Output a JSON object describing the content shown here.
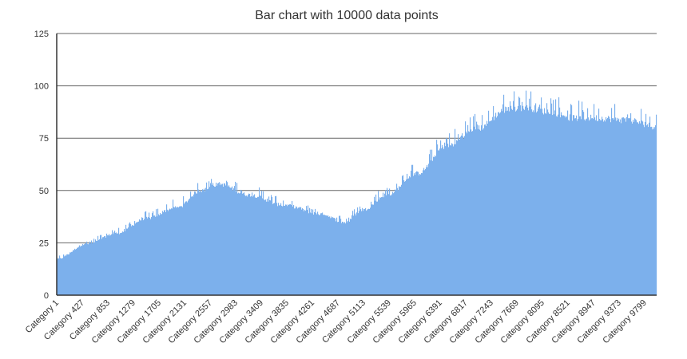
{
  "chart_data": {
    "type": "bar",
    "title": "Bar chart with 10000 data points",
    "xlabel": "",
    "ylabel": "",
    "ylim": [
      0,
      125
    ],
    "yticks": [
      0,
      25,
      50,
      75,
      100,
      125
    ],
    "grid": true,
    "legend": "none",
    "bar_color": "#7cb0ec",
    "category_prefix": "Category ",
    "num_points": 10000,
    "x_tick_labels": [
      "Category 1",
      "Category 427",
      "Category 853",
      "Category 1279",
      "Category 1705",
      "Category 2131",
      "Category 2557",
      "Category 2983",
      "Category 3409",
      "Category 3835",
      "Category 4261",
      "Category 4687",
      "Category 5113",
      "Category 5539",
      "Category 5965",
      "Category 6391",
      "Category 6817",
      "Category 7243",
      "Category 7669",
      "Category 8095",
      "Category 8521",
      "Category 8947",
      "Category 9373",
      "Category 9799"
    ],
    "trend": {
      "categories": [
        1,
        500,
        1000,
        1500,
        2000,
        2400,
        2700,
        3200,
        3800,
        4400,
        4800,
        5100,
        5500,
        6000,
        6500,
        7000,
        7500,
        7800,
        8200,
        8600,
        9000,
        9500,
        10000
      ],
      "values": [
        17,
        24,
        29,
        36,
        41,
        49,
        52,
        47,
        42,
        38,
        34,
        40,
        47,
        57,
        70,
        78,
        87,
        88,
        86,
        83,
        83,
        82,
        79
      ]
    }
  }
}
